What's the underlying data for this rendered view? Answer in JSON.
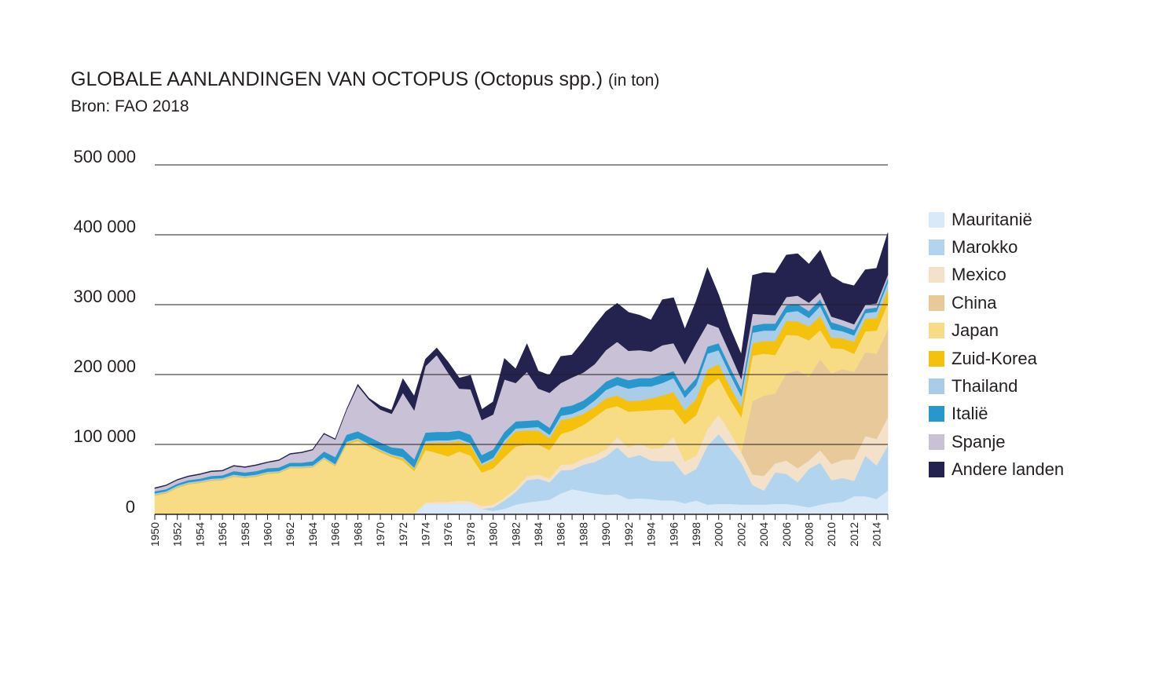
{
  "chart_data": {
    "type": "area",
    "stacked": true,
    "title": "GLOBALE AANLANDINGEN VAN OCTOPUS (Octopus spp.)",
    "unit": "(in ton)",
    "subtitle": "Bron: FAO 2018",
    "xlabel": "",
    "ylabel": "",
    "ylim": [
      0,
      500000
    ],
    "yticks": [
      0,
      100000,
      200000,
      300000,
      400000,
      500000
    ],
    "ytick_labels": [
      "0",
      "100 000",
      "200 000",
      "300 000",
      "400 000",
      "500 000"
    ],
    "grid": true,
    "legend_position": "right",
    "x": [
      1950,
      1951,
      1952,
      1953,
      1954,
      1955,
      1956,
      1957,
      1958,
      1959,
      1960,
      1961,
      1962,
      1963,
      1964,
      1965,
      1966,
      1967,
      1968,
      1969,
      1970,
      1971,
      1972,
      1973,
      1974,
      1975,
      1976,
      1977,
      1978,
      1979,
      1980,
      1981,
      1982,
      1983,
      1984,
      1985,
      1986,
      1987,
      1988,
      1989,
      1990,
      1991,
      1992,
      1993,
      1994,
      1995,
      1996,
      1997,
      1998,
      1999,
      2000,
      2001,
      2002,
      2003,
      2004,
      2005,
      2006,
      2007,
      2008,
      2009,
      2010,
      2011,
      2012,
      2013,
      2014,
      2015
    ],
    "xtick_labels": [
      "1950",
      "1952",
      "1954",
      "1956",
      "1958",
      "1960",
      "1962",
      "1964",
      "1966",
      "1968",
      "1970",
      "1972",
      "1974",
      "1976",
      "1978",
      "1980",
      "1982",
      "1984",
      "1986",
      "1988",
      "1990",
      "1992",
      "1994",
      "1996",
      "1998",
      "2000",
      "2002",
      "2004",
      "2006",
      "2008",
      "2010",
      "2012",
      "2014"
    ],
    "series": [
      {
        "name": "Mauritanië",
        "color": "#d9e9f7",
        "values": [
          0,
          0,
          0,
          0,
          0,
          0,
          0,
          0,
          0,
          0,
          0,
          0,
          0,
          0,
          0,
          0,
          0,
          0,
          0,
          0,
          0,
          0,
          0,
          0,
          15000,
          15000,
          15000,
          15000,
          15000,
          8000,
          5000,
          8000,
          14000,
          17000,
          19000,
          21000,
          30000,
          36000,
          33000,
          30000,
          28000,
          29000,
          22000,
          23000,
          22000,
          20000,
          20000,
          16000,
          20000,
          14000,
          15000,
          15000,
          14000,
          14000,
          14000,
          15000,
          15000,
          13000,
          10000,
          14000,
          17000,
          18000,
          26000,
          26000,
          22000,
          34000
        ]
      },
      {
        "name": "Marokko",
        "color": "#b2d4ee",
        "values": [
          0,
          0,
          0,
          0,
          0,
          0,
          0,
          0,
          0,
          0,
          0,
          0,
          0,
          0,
          0,
          0,
          0,
          0,
          0,
          0,
          0,
          0,
          0,
          0,
          0,
          0,
          0,
          0,
          0,
          0,
          5000,
          12000,
          18000,
          32000,
          32000,
          25000,
          33000,
          28000,
          38000,
          45000,
          55000,
          67000,
          59000,
          62000,
          55000,
          56000,
          56000,
          40000,
          45000,
          84000,
          100000,
          80000,
          60000,
          28000,
          20000,
          45000,
          43000,
          33000,
          55000,
          60000,
          32000,
          34000,
          22000,
          58000,
          48000,
          65000
        ]
      },
      {
        "name": "Mexico",
        "color": "#f3e2c9",
        "values": [
          0,
          0,
          0,
          0,
          0,
          0,
          0,
          0,
          0,
          0,
          0,
          0,
          0,
          0,
          0,
          0,
          0,
          0,
          0,
          0,
          2000,
          2000,
          2000,
          2000,
          2000,
          3000,
          3000,
          5000,
          4000,
          4000,
          4000,
          4000,
          5000,
          6000,
          6000,
          6000,
          8000,
          8000,
          9000,
          10000,
          10000,
          15000,
          15000,
          17000,
          17000,
          20000,
          35000,
          20000,
          19000,
          24000,
          28000,
          23000,
          15000,
          15000,
          21000,
          13000,
          19000,
          20000,
          12000,
          18000,
          23000,
          26000,
          31000,
          28000,
          38000,
          40000
        ]
      },
      {
        "name": "China",
        "color": "#e8ca9a",
        "values": [
          0,
          0,
          0,
          0,
          0,
          0,
          0,
          0,
          0,
          0,
          0,
          0,
          0,
          0,
          0,
          0,
          0,
          0,
          0,
          0,
          0,
          0,
          0,
          0,
          0,
          0,
          0,
          0,
          0,
          0,
          0,
          0,
          0,
          0,
          0,
          0,
          0,
          0,
          0,
          0,
          0,
          0,
          0,
          0,
          0,
          0,
          0,
          0,
          0,
          0,
          0,
          0,
          0,
          105000,
          115000,
          100000,
          125000,
          140000,
          120000,
          130000,
          130000,
          130000,
          125000,
          120000,
          122000,
          126000
        ]
      },
      {
        "name": "Japan",
        "color": "#f8dc85",
        "values": [
          27000,
          30000,
          38000,
          43000,
          45000,
          48000,
          49000,
          54000,
          52000,
          54000,
          58000,
          59000,
          66000,
          66000,
          67000,
          79000,
          69000,
          100000,
          105000,
          97000,
          87000,
          80000,
          75000,
          60000,
          75000,
          70000,
          65000,
          70000,
          65000,
          48000,
          52000,
          58000,
          60000,
          45000,
          43000,
          40000,
          44000,
          48000,
          48000,
          54000,
          58000,
          44000,
          51000,
          46000,
          55000,
          54000,
          39000,
          53000,
          58000,
          60000,
          52000,
          47000,
          50000,
          65000,
          60000,
          55000,
          55000,
          50000,
          52000,
          42000,
          36000,
          29000,
          26000,
          30000,
          33000,
          37000
        ]
      },
      {
        "name": "Zuid-Korea",
        "color": "#f4c20d",
        "values": [
          1000,
          1000,
          1000,
          1000,
          1000,
          1000,
          1000,
          1000,
          1000,
          1000,
          1000,
          1000,
          1000,
          1000,
          1000,
          1000,
          1000,
          2000,
          2000,
          2000,
          2000,
          2000,
          3000,
          3000,
          10000,
          15000,
          20000,
          15000,
          15000,
          10000,
          12000,
          20000,
          22000,
          20000,
          20000,
          17000,
          20000,
          18000,
          16000,
          15000,
          15000,
          15000,
          15000,
          15000,
          17000,
          20000,
          25000,
          20000,
          23000,
          25000,
          20000,
          18000,
          15000,
          18000,
          18000,
          20000,
          20000,
          20000,
          20000,
          20000,
          15000,
          15000,
          17000,
          18000,
          18000,
          20000
        ]
      },
      {
        "name": "Thailand",
        "color": "#a9cce9",
        "values": [
          2000,
          2000,
          2000,
          2000,
          2000,
          2000,
          2000,
          2000,
          2000,
          2000,
          2000,
          2000,
          2000,
          2000,
          2000,
          2000,
          2000,
          2000,
          2000,
          2000,
          2000,
          2000,
          2000,
          2000,
          3000,
          3000,
          3000,
          3000,
          3000,
          3000,
          3000,
          4000,
          4000,
          4000,
          5000,
          5000,
          6000,
          6000,
          7000,
          9000,
          12000,
          15000,
          18000,
          20000,
          17000,
          18000,
          20000,
          18000,
          20000,
          23000,
          20000,
          18000,
          15000,
          15000,
          15000,
          15000,
          12000,
          15000,
          12000,
          14000,
          12000,
          10000,
          9000,
          8000,
          9000,
          10000
        ]
      },
      {
        "name": "Italië",
        "color": "#2898cc",
        "values": [
          3000,
          3000,
          3000,
          3000,
          3000,
          4000,
          4000,
          5000,
          5000,
          5000,
          5000,
          5000,
          5000,
          5000,
          6000,
          8000,
          10000,
          10000,
          10000,
          10000,
          10000,
          10000,
          12000,
          12000,
          12000,
          12000,
          12000,
          12000,
          12000,
          12000,
          12000,
          12000,
          10000,
          10000,
          10000,
          10000,
          12000,
          12000,
          12000,
          12000,
          12000,
          12000,
          12000,
          12000,
          12000,
          12000,
          10000,
          10000,
          10000,
          10000,
          10000,
          10000,
          10000,
          10000,
          10000,
          10000,
          10000,
          10000,
          10000,
          10000,
          10000,
          8000,
          8000,
          6000,
          6000,
          6000
        ]
      },
      {
        "name": "Spanje",
        "color": "#c9c1d6",
        "values": [
          4000,
          5000,
          5000,
          5000,
          6000,
          6000,
          6000,
          7000,
          7000,
          8000,
          8000,
          10000,
          12000,
          14000,
          16000,
          25000,
          25000,
          35000,
          65000,
          53000,
          47000,
          48000,
          80000,
          70000,
          95000,
          110000,
          85000,
          60000,
          65000,
          50000,
          50000,
          75000,
          55000,
          70000,
          45000,
          50000,
          35000,
          40000,
          40000,
          40000,
          45000,
          50000,
          42000,
          40000,
          38000,
          42000,
          40000,
          38000,
          50000,
          33000,
          22000,
          20000,
          15000,
          17000,
          13000,
          12000,
          12000,
          12000,
          12000,
          10000,
          8000,
          8000,
          8000,
          6000,
          6000,
          5000
        ]
      },
      {
        "name": "Andere landen",
        "color": "#24224f",
        "values": [
          1000,
          1000,
          1000,
          1000,
          1000,
          1000,
          1000,
          1000,
          1000,
          1000,
          1000,
          1000,
          1000,
          1000,
          1000,
          1000,
          1000,
          1000,
          2000,
          2000,
          5000,
          5000,
          20000,
          20000,
          10000,
          10000,
          15000,
          15000,
          20000,
          15000,
          18000,
          30000,
          20000,
          40000,
          25000,
          25000,
          38000,
          32000,
          45000,
          55000,
          55000,
          55000,
          55000,
          50000,
          45000,
          65000,
          65000,
          50000,
          60000,
          80000,
          47000,
          36000,
          35000,
          55000,
          60000,
          60000,
          60000,
          60000,
          55000,
          60000,
          58000,
          53000,
          55000,
          50000,
          50000,
          60000
        ]
      }
    ]
  }
}
